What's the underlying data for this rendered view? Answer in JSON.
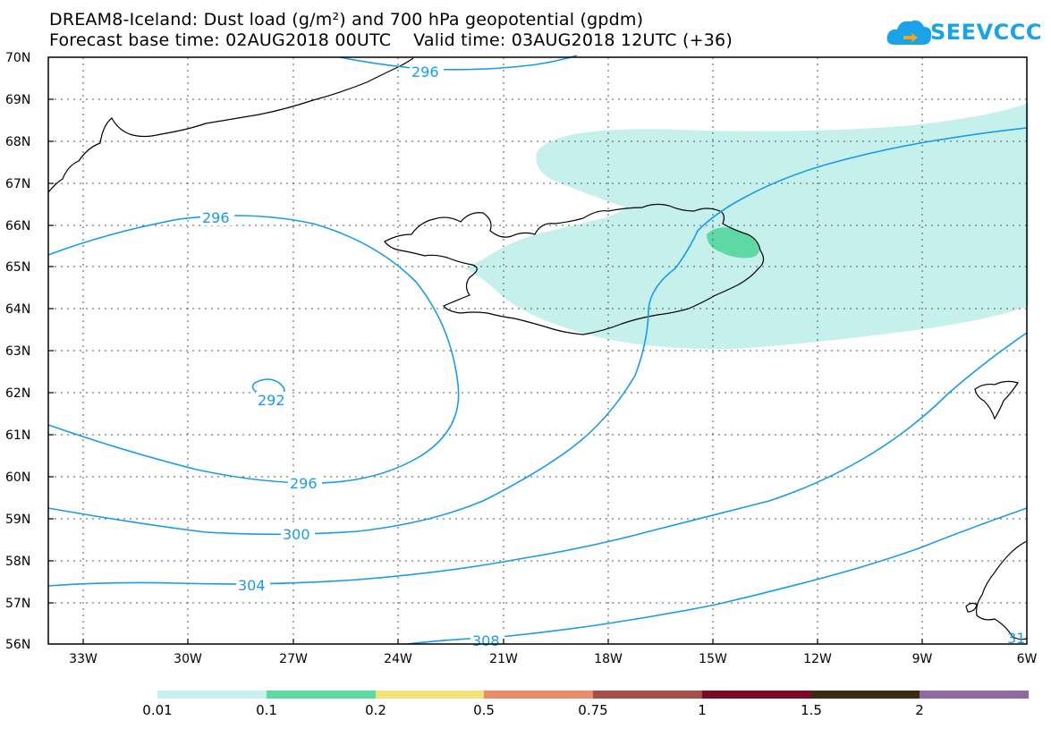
{
  "title": {
    "line1": "DREAM8-Iceland: Dust load (g/m²) and 700 hPa geopotential (gpdm)",
    "line2": "Forecast base time: 02AUG2018 00UTC    Valid time: 03AUG2018 12UTC (+36)"
  },
  "logo": {
    "text": "SEEVCCC",
    "icon": "cloud-icon",
    "color": "#1aa3e8"
  },
  "map": {
    "lat_labels": [
      "70N",
      "69N",
      "68N",
      "67N",
      "66N",
      "65N",
      "64N",
      "63N",
      "62N",
      "61N",
      "60N",
      "59N",
      "58N",
      "57N",
      "56N"
    ],
    "lon_labels": [
      "33W",
      "30W",
      "27W",
      "24W",
      "21W",
      "18W",
      "15W",
      "12W",
      "9W",
      "6W"
    ],
    "contour_labels": {
      "c296_top": "296",
      "c296_left": "296",
      "c292": "292",
      "c296_bottom": "296",
      "c300": "300",
      "c304": "304",
      "c308": "308",
      "c31x": "31"
    },
    "contour_color": "#1a9be8",
    "dust_low_color": "#c6f0ec",
    "dust_mid_color": "#5ed9a6"
  },
  "colorbar": {
    "labels": [
      "0.01",
      "0.1",
      "0.2",
      "0.5",
      "0.75",
      "1",
      "1.5",
      "2"
    ],
    "colors": [
      "#c6f0ec",
      "#5ed9a6",
      "#f2e27a",
      "#e88c6a",
      "#a3504a",
      "#7a0a2a",
      "#3a2a14",
      "#8e6aa0"
    ]
  }
}
